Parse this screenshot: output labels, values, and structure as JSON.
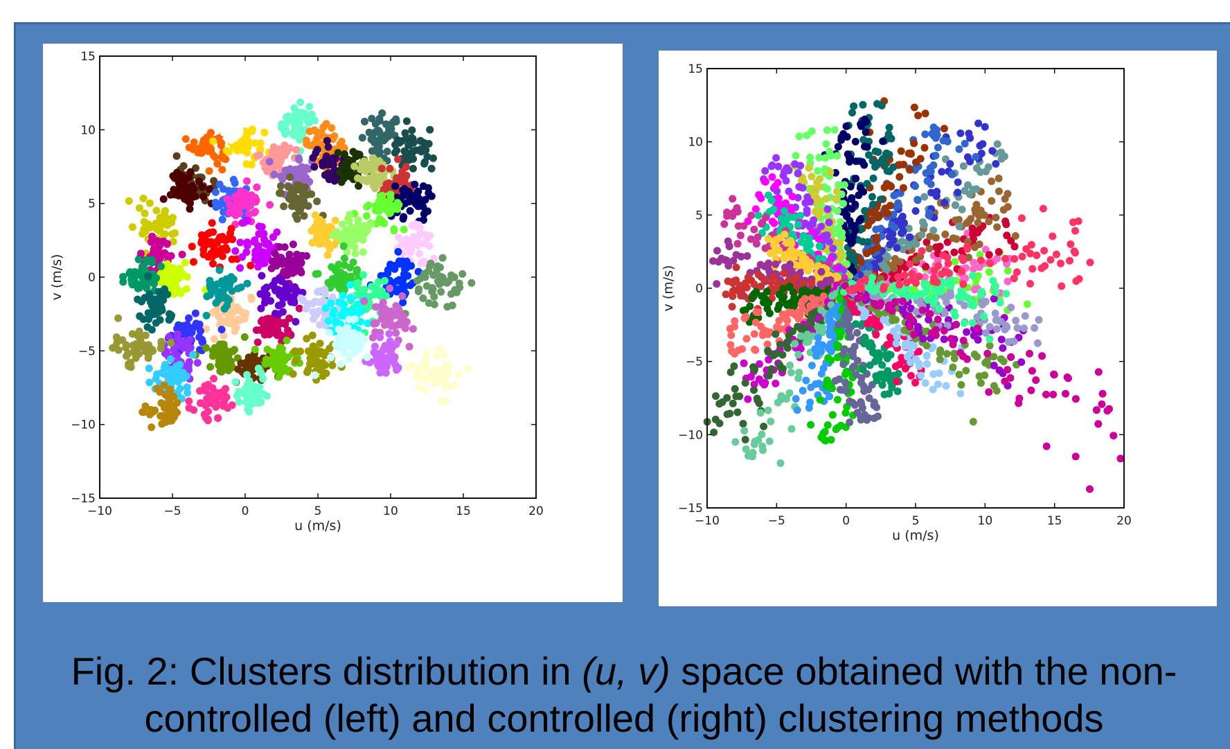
{
  "caption": {
    "line1_prefix": "Fig. 2: Clusters distribution in ",
    "line1_italic": "(u, v)",
    "line1_suffix": " space obtained with the non-",
    "line2": "controlled (left) and controlled (right) clustering methods"
  },
  "colors": {
    "panel_background": "#4f81bd",
    "chart_background": "#ffffff",
    "caption_text": "#000000"
  },
  "chart_data": [
    {
      "id": "left",
      "type": "scatter",
      "method": "non-controlled",
      "xlabel": "u (m/s)",
      "ylabel": "v (m/s)",
      "xlim": [
        -10,
        20
      ],
      "ylim": [
        -15,
        15
      ],
      "xticks": [
        -10,
        -5,
        0,
        5,
        10,
        15,
        20
      ],
      "yticks": [
        -15,
        -10,
        -5,
        0,
        5,
        10,
        15
      ],
      "grid": false,
      "legend": "none",
      "cluster_shape": "compact",
      "clusters": [
        {
          "color": "#ff6600",
          "center": [
            -2.5,
            9
          ],
          "spread": 0.9
        },
        {
          "color": "#ffdd00",
          "center": [
            0,
            9
          ],
          "spread": 0.9
        },
        {
          "color": "#66ffcc",
          "center": [
            3.5,
            10.5
          ],
          "spread": 0.9
        },
        {
          "color": "#ff8c1a",
          "center": [
            5.5,
            9
          ],
          "spread": 0.9
        },
        {
          "color": "#336666",
          "center": [
            9.5,
            9.5
          ],
          "spread": 1.0
        },
        {
          "color": "#1a4d4d",
          "center": [
            11.5,
            8.5
          ],
          "spread": 1.0
        },
        {
          "color": "#5c3d1e",
          "center": [
            -3.5,
            6.5
          ],
          "spread": 0.9
        },
        {
          "color": "#4d0000",
          "center": [
            -4,
            6
          ],
          "spread": 0.8
        },
        {
          "color": "#3366ff",
          "center": [
            -1,
            5
          ],
          "spread": 0.9
        },
        {
          "color": "#ff33cc",
          "center": [
            0,
            5
          ],
          "spread": 0.9
        },
        {
          "color": "#ff9999",
          "center": [
            2,
            8
          ],
          "spread": 0.8
        },
        {
          "color": "#9966cc",
          "center": [
            3.5,
            7
          ],
          "spread": 0.9
        },
        {
          "color": "#666633",
          "center": [
            3.5,
            5.5
          ],
          "spread": 0.9
        },
        {
          "color": "#330066",
          "center": [
            6,
            7.5
          ],
          "spread": 0.9
        },
        {
          "color": "#1a3300",
          "center": [
            7.5,
            7.5
          ],
          "spread": 0.9
        },
        {
          "color": "#bbcc66",
          "center": [
            9,
            7
          ],
          "spread": 1.0
        },
        {
          "color": "#cc3333",
          "center": [
            10.5,
            6
          ],
          "spread": 0.9
        },
        {
          "color": "#000066",
          "center": [
            11.5,
            5
          ],
          "spread": 1.0
        },
        {
          "color": "#66ff33",
          "center": [
            9.5,
            4.5
          ],
          "spread": 0.9
        },
        {
          "color": "#cccc00",
          "center": [
            -6,
            3.5
          ],
          "spread": 0.9
        },
        {
          "color": "#cc0099",
          "center": [
            -6,
            1.5
          ],
          "spread": 0.9
        },
        {
          "color": "#ff0000",
          "center": [
            -2,
            2
          ],
          "spread": 1.0
        },
        {
          "color": "#cc00ff",
          "center": [
            1,
            2
          ],
          "spread": 1.0
        },
        {
          "color": "#990099",
          "center": [
            3,
            1
          ],
          "spread": 1.0
        },
        {
          "color": "#ffcc33",
          "center": [
            5.5,
            3
          ],
          "spread": 0.9
        },
        {
          "color": "#99ff66",
          "center": [
            7.5,
            3
          ],
          "spread": 0.9
        },
        {
          "color": "#ffccff",
          "center": [
            11.5,
            2
          ],
          "spread": 1.0
        },
        {
          "color": "#ccff00",
          "center": [
            -5,
            0
          ],
          "spread": 0.9
        },
        {
          "color": "#009966",
          "center": [
            -7,
            0
          ],
          "spread": 0.8
        },
        {
          "color": "#006666",
          "center": [
            -6,
            -2
          ],
          "spread": 0.9
        },
        {
          "color": "#33cc33",
          "center": [
            6.5,
            0
          ],
          "spread": 1.0
        },
        {
          "color": "#0033ff",
          "center": [
            10.5,
            0
          ],
          "spread": 1.0
        },
        {
          "color": "#33ff99",
          "center": [
            8.5,
            -1.5
          ],
          "spread": 1.0
        },
        {
          "color": "#669966",
          "center": [
            13.5,
            -0.5
          ],
          "spread": 1.2
        },
        {
          "color": "#ffcc99",
          "center": [
            -1,
            -2.5
          ],
          "spread": 1.0
        },
        {
          "color": "#009999",
          "center": [
            -1.5,
            -1
          ],
          "spread": 0.9
        },
        {
          "color": "#cc0066",
          "center": [
            2,
            -3.5
          ],
          "spread": 1.0
        },
        {
          "color": "#6600cc",
          "center": [
            2.5,
            -1
          ],
          "spread": 1.0
        },
        {
          "color": "#ccccff",
          "center": [
            5.5,
            -2
          ],
          "spread": 1.0
        },
        {
          "color": "#00ffff",
          "center": [
            7,
            -2.5
          ],
          "spread": 1.0
        },
        {
          "color": "#cc66cc",
          "center": [
            10,
            -3
          ],
          "spread": 1.1
        },
        {
          "color": "#cc66ff",
          "center": [
            9.5,
            -5.5
          ],
          "spread": 1.0
        },
        {
          "color": "#3333ff",
          "center": [
            -4,
            -4
          ],
          "spread": 0.9
        },
        {
          "color": "#9933ff",
          "center": [
            -4.5,
            -5.5
          ],
          "spread": 1.0
        },
        {
          "color": "#999933",
          "center": [
            -7.5,
            -4.5
          ],
          "spread": 1.0
        },
        {
          "color": "#669900",
          "center": [
            -1.5,
            -5.5
          ],
          "spread": 0.9
        },
        {
          "color": "#663300",
          "center": [
            0.5,
            -6
          ],
          "spread": 0.8
        },
        {
          "color": "#66cc00",
          "center": [
            2.5,
            -5.5
          ],
          "spread": 0.9
        },
        {
          "color": "#999900",
          "center": [
            5,
            -5.5
          ],
          "spread": 1.0
        },
        {
          "color": "#ccffff",
          "center": [
            7,
            -4.5
          ],
          "spread": 1.0
        },
        {
          "color": "#33ccff",
          "center": [
            -5,
            -7
          ],
          "spread": 1.0
        },
        {
          "color": "#ff3399",
          "center": [
            -2,
            -8.5
          ],
          "spread": 1.0
        },
        {
          "color": "#b8860b",
          "center": [
            -5.5,
            -9
          ],
          "spread": 1.0
        },
        {
          "color": "#66ffcc",
          "center": [
            0.5,
            -8
          ],
          "spread": 0.9
        },
        {
          "color": "#ffffcc",
          "center": [
            13,
            -6.5
          ],
          "spread": 1.2
        },
        {
          "color": "#ffffff",
          "center": [
            -1,
            10
          ],
          "spread": 0.5
        }
      ]
    },
    {
      "id": "right",
      "type": "scatter",
      "method": "controlled",
      "xlabel": "u (m/s)",
      "ylabel": "v (m/s)",
      "xlim": [
        -10,
        20
      ],
      "ylim": [
        -15,
        15
      ],
      "xticks": [
        -10,
        -5,
        0,
        5,
        10,
        15,
        20
      ],
      "yticks": [
        -15,
        -10,
        -5,
        0,
        5,
        10,
        15
      ],
      "grid": false,
      "legend": "none",
      "cluster_shape": "radial",
      "clusters": [
        {
          "color": "#66ff33",
          "center": [
            9,
            0.5
          ],
          "spread": 1.0
        },
        {
          "color": "#ff66cc",
          "center": [
            8,
            1.5
          ],
          "spread": 1.0
        },
        {
          "color": "#cc0033",
          "center": [
            8,
            3
          ],
          "spread": 1.0
        },
        {
          "color": "#996633",
          "center": [
            8.5,
            4.5
          ],
          "spread": 1.0
        },
        {
          "color": "#669999",
          "center": [
            8,
            6.5
          ],
          "spread": 1.0
        },
        {
          "color": "#3333cc",
          "center": [
            7,
            7.5
          ],
          "spread": 1.0
        },
        {
          "color": "#3366cc",
          "center": [
            5,
            7.5
          ],
          "spread": 1.0
        },
        {
          "color": "#993300",
          "center": [
            3.5,
            8.5
          ],
          "spread": 1.0
        },
        {
          "color": "#006666",
          "center": [
            2,
            8.5
          ],
          "spread": 1.0
        },
        {
          "color": "#000066",
          "center": [
            0.5,
            8
          ],
          "spread": 1.0
        },
        {
          "color": "#66ff66",
          "center": [
            -1.5,
            7.5
          ],
          "spread": 1.0
        },
        {
          "color": "#cccc33",
          "center": [
            -2,
            6
          ],
          "spread": 1.0
        },
        {
          "color": "#9933ff",
          "center": [
            -3.5,
            6
          ],
          "spread": 1.0
        },
        {
          "color": "#ff00ff",
          "center": [
            -4.5,
            5
          ],
          "spread": 1.0
        },
        {
          "color": "#00cc99",
          "center": [
            -4,
            4
          ],
          "spread": 1.0
        },
        {
          "color": "#cc3399",
          "center": [
            -6,
            3.5
          ],
          "spread": 1.0
        },
        {
          "color": "#ffcc33",
          "center": [
            -3.5,
            2
          ],
          "spread": 1.0
        },
        {
          "color": "#993399",
          "center": [
            -6.5,
            1
          ],
          "spread": 1.0
        },
        {
          "color": "#cc3333",
          "center": [
            -6,
            0
          ],
          "spread": 1.0
        },
        {
          "color": "#006600",
          "center": [
            -5,
            -1
          ],
          "spread": 1.0
        },
        {
          "color": "#ff6666",
          "center": [
            -6,
            -3
          ],
          "spread": 1.0
        },
        {
          "color": "#cc00cc",
          "center": [
            -5,
            -5
          ],
          "spread": 1.0
        },
        {
          "color": "#336633",
          "center": [
            -7,
            -6.5
          ],
          "spread": 0.8
        },
        {
          "color": "#66cc99",
          "center": [
            -5,
            -8
          ],
          "spread": 0.9
        },
        {
          "color": "#3399ff",
          "center": [
            -2,
            -6
          ],
          "spread": 1.0
        },
        {
          "color": "#00cc00",
          "center": [
            -0.5,
            -7.5
          ],
          "spread": 1.0
        },
        {
          "color": "#666699",
          "center": [
            1,
            -6.5
          ],
          "spread": 1.0
        },
        {
          "color": "#009966",
          "center": [
            2.5,
            -5
          ],
          "spread": 1.0
        },
        {
          "color": "#ff0066",
          "center": [
            3.5,
            -4
          ],
          "spread": 1.0
        },
        {
          "color": "#99ccff",
          "center": [
            5.5,
            -4.5
          ],
          "spread": 1.0
        },
        {
          "color": "#669933",
          "center": [
            8,
            -4.5
          ],
          "spread": 1.0
        },
        {
          "color": "#9900cc",
          "center": [
            9,
            -3
          ],
          "spread": 1.0
        },
        {
          "color": "#9999cc",
          "center": [
            10,
            -2
          ],
          "spread": 1.0
        },
        {
          "color": "#33ff99",
          "center": [
            8,
            -0.5
          ],
          "spread": 1.0
        },
        {
          "color": "#cc0099",
          "center": [
            14.5,
            -7
          ],
          "spread": 0.9
        },
        {
          "color": "#ff3366",
          "center": [
            12,
            2
          ],
          "spread": 1.0
        }
      ]
    }
  ]
}
